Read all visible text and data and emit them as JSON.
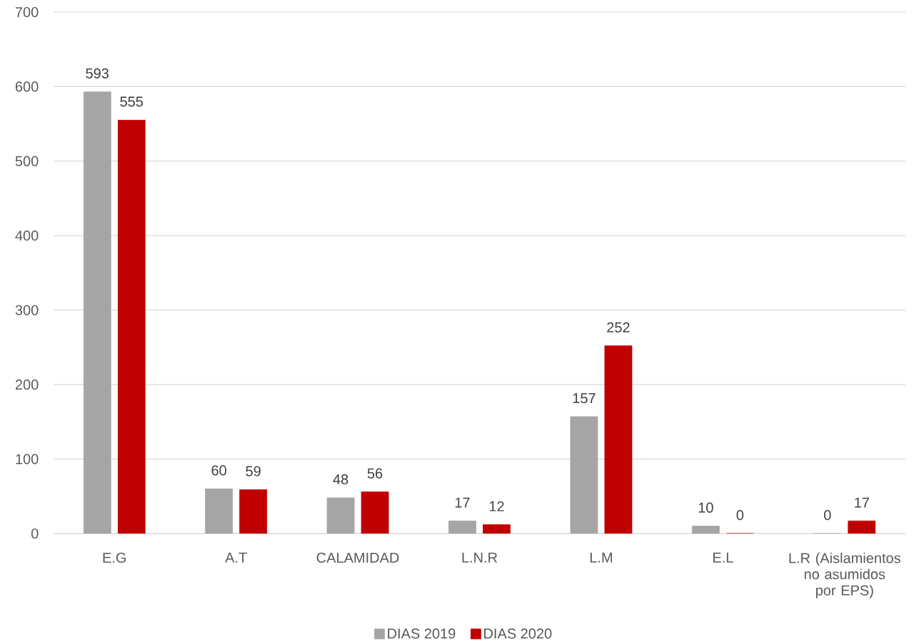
{
  "chart_data": {
    "type": "bar",
    "categories": [
      "E.G",
      "A.T",
      "CALAMIDAD",
      "L.N.R",
      "L.M",
      "E.L",
      "L.R (Aislamientos no asumidos por EPS)"
    ],
    "series": [
      {
        "name": "DIAS 2019",
        "color": "#a5a5a5",
        "values": [
          593,
          60,
          48,
          17,
          157,
          10,
          0
        ]
      },
      {
        "name": "DIAS 2020",
        "color": "#c00000",
        "values": [
          555,
          59,
          56,
          12,
          252,
          0,
          17
        ]
      }
    ],
    "ylim": [
      0,
      700
    ],
    "yticks": [
      0,
      100,
      200,
      300,
      400,
      500,
      600,
      700
    ],
    "grid": "y",
    "legend": "bottom",
    "data_labels": true
  }
}
